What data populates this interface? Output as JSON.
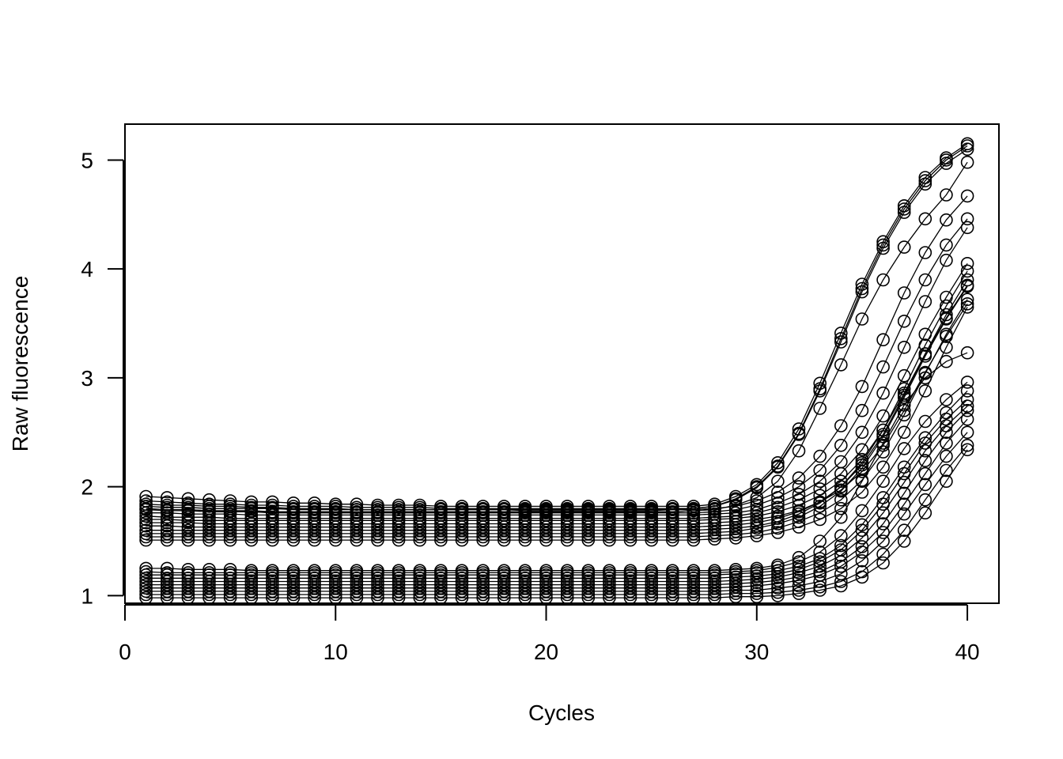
{
  "chart_data": {
    "type": "line",
    "title": "",
    "xlabel": "Cycles",
    "ylabel": "Raw fluorescence",
    "xlim": [
      0,
      41.5
    ],
    "ylim": [
      0.93,
      5.33
    ],
    "xticks": [
      0,
      10,
      20,
      30,
      40
    ],
    "yticks": [
      1,
      2,
      3,
      4,
      5
    ],
    "grid": false,
    "legend": "none",
    "marker": "open-circle",
    "line_color": "#000000",
    "x": [
      1,
      2,
      3,
      4,
      5,
      6,
      7,
      8,
      9,
      10,
      11,
      12,
      13,
      14,
      15,
      16,
      17,
      18,
      19,
      20,
      21,
      22,
      23,
      24,
      25,
      26,
      27,
      28,
      29,
      30,
      31,
      32,
      33,
      34,
      35,
      36,
      37,
      38,
      39,
      40
    ],
    "series": [
      {
        "values": [
          1.91,
          1.9,
          1.89,
          1.88,
          1.87,
          1.86,
          1.86,
          1.85,
          1.85,
          1.84,
          1.84,
          1.83,
          1.83,
          1.83,
          1.82,
          1.82,
          1.82,
          1.82,
          1.82,
          1.82,
          1.82,
          1.82,
          1.82,
          1.82,
          1.82,
          1.82,
          1.82,
          1.84,
          1.91,
          2.02,
          2.22,
          2.53,
          2.95,
          3.41,
          3.86,
          4.25,
          4.58,
          4.84,
          5.02,
          5.15
        ]
      },
      {
        "values": [
          1.87,
          1.86,
          1.85,
          1.84,
          1.84,
          1.83,
          1.83,
          1.82,
          1.82,
          1.82,
          1.81,
          1.81,
          1.81,
          1.81,
          1.8,
          1.8,
          1.8,
          1.8,
          1.8,
          1.8,
          1.8,
          1.8,
          1.8,
          1.8,
          1.8,
          1.8,
          1.8,
          1.82,
          1.89,
          2.0,
          2.19,
          2.49,
          2.9,
          3.36,
          3.82,
          4.22,
          4.55,
          4.81,
          5.0,
          5.13
        ]
      },
      {
        "values": [
          1.84,
          1.83,
          1.83,
          1.82,
          1.82,
          1.81,
          1.81,
          1.8,
          1.8,
          1.8,
          1.79,
          1.79,
          1.79,
          1.79,
          1.79,
          1.79,
          1.79,
          1.79,
          1.78,
          1.78,
          1.78,
          1.78,
          1.78,
          1.78,
          1.78,
          1.79,
          1.8,
          1.82,
          1.88,
          1.99,
          2.18,
          2.48,
          2.88,
          3.33,
          3.79,
          4.19,
          4.52,
          4.78,
          4.97,
          5.1
        ]
      },
      {
        "values": [
          1.8,
          1.79,
          1.79,
          1.78,
          1.78,
          1.78,
          1.77,
          1.77,
          1.77,
          1.77,
          1.77,
          1.77,
          1.77,
          1.77,
          1.77,
          1.77,
          1.77,
          1.77,
          1.77,
          1.77,
          1.77,
          1.77,
          1.77,
          1.77,
          1.77,
          1.77,
          1.78,
          1.79,
          1.83,
          1.9,
          2.05,
          2.33,
          2.72,
          3.12,
          3.54,
          3.9,
          4.2,
          4.46,
          4.68,
          4.98
        ]
      },
      {
        "values": [
          1.82,
          1.81,
          1.81,
          1.8,
          1.8,
          1.8,
          1.8,
          1.79,
          1.79,
          1.79,
          1.79,
          1.79,
          1.79,
          1.79,
          1.79,
          1.79,
          1.79,
          1.79,
          1.79,
          1.79,
          1.79,
          1.79,
          1.79,
          1.79,
          1.79,
          1.79,
          1.79,
          1.8,
          1.82,
          1.87,
          1.95,
          2.08,
          2.28,
          2.56,
          2.92,
          3.35,
          3.78,
          4.15,
          4.45,
          4.67
        ]
      },
      {
        "values": [
          1.79,
          1.78,
          1.78,
          1.77,
          1.77,
          1.77,
          1.76,
          1.76,
          1.76,
          1.76,
          1.76,
          1.76,
          1.76,
          1.76,
          1.76,
          1.76,
          1.76,
          1.76,
          1.76,
          1.76,
          1.76,
          1.76,
          1.76,
          1.76,
          1.76,
          1.76,
          1.76,
          1.77,
          1.79,
          1.83,
          1.9,
          2.0,
          2.15,
          2.38,
          2.7,
          3.1,
          3.52,
          3.9,
          4.22,
          4.46
        ]
      },
      {
        "values": [
          1.76,
          1.76,
          1.75,
          1.75,
          1.75,
          1.74,
          1.74,
          1.74,
          1.74,
          1.74,
          1.74,
          1.74,
          1.74,
          1.74,
          1.74,
          1.74,
          1.74,
          1.74,
          1.74,
          1.74,
          1.74,
          1.74,
          1.74,
          1.74,
          1.74,
          1.74,
          1.74,
          1.75,
          1.76,
          1.79,
          1.85,
          1.93,
          2.05,
          2.23,
          2.5,
          2.86,
          3.28,
          3.7,
          4.08,
          4.38
        ]
      },
      {
        "values": [
          1.73,
          1.72,
          1.72,
          1.72,
          1.71,
          1.71,
          1.71,
          1.71,
          1.71,
          1.71,
          1.71,
          1.71,
          1.71,
          1.71,
          1.71,
          1.71,
          1.71,
          1.71,
          1.71,
          1.71,
          1.71,
          1.71,
          1.71,
          1.71,
          1.71,
          1.71,
          1.71,
          1.72,
          1.73,
          1.76,
          1.81,
          1.88,
          1.98,
          2.12,
          2.34,
          2.65,
          3.02,
          3.4,
          3.74,
          4.05
        ]
      },
      {
        "values": [
          1.7,
          1.7,
          1.69,
          1.69,
          1.69,
          1.69,
          1.69,
          1.69,
          1.69,
          1.69,
          1.69,
          1.69,
          1.69,
          1.69,
          1.69,
          1.69,
          1.69,
          1.69,
          1.69,
          1.69,
          1.69,
          1.69,
          1.69,
          1.69,
          1.69,
          1.69,
          1.69,
          1.7,
          1.71,
          1.73,
          1.77,
          1.83,
          1.92,
          2.05,
          2.25,
          2.52,
          2.86,
          3.22,
          3.55,
          3.85
        ]
      },
      {
        "values": [
          1.67,
          1.67,
          1.67,
          1.66,
          1.66,
          1.66,
          1.66,
          1.66,
          1.66,
          1.66,
          1.66,
          1.66,
          1.66,
          1.66,
          1.66,
          1.66,
          1.66,
          1.66,
          1.66,
          1.66,
          1.66,
          1.66,
          1.66,
          1.66,
          1.66,
          1.66,
          1.66,
          1.67,
          1.68,
          1.7,
          1.73,
          1.78,
          1.86,
          1.97,
          2.14,
          2.38,
          2.7,
          3.05,
          3.38,
          3.68
        ]
      },
      {
        "values": [
          1.64,
          1.64,
          1.63,
          1.63,
          1.63,
          1.63,
          1.63,
          1.63,
          1.63,
          1.63,
          1.63,
          1.63,
          1.63,
          1.63,
          1.63,
          1.63,
          1.63,
          1.63,
          1.63,
          1.63,
          1.63,
          1.63,
          1.63,
          1.63,
          1.63,
          1.63,
          1.63,
          1.64,
          1.65,
          1.67,
          1.71,
          1.77,
          1.86,
          2.0,
          2.2,
          2.48,
          2.84,
          3.22,
          3.58,
          3.9
        ]
      },
      {
        "values": [
          1.6,
          1.6,
          1.6,
          1.6,
          1.6,
          1.6,
          1.6,
          1.6,
          1.6,
          1.6,
          1.6,
          1.6,
          1.6,
          1.6,
          1.6,
          1.6,
          1.6,
          1.6,
          1.6,
          1.6,
          1.6,
          1.6,
          1.6,
          1.6,
          1.6,
          1.6,
          1.6,
          1.61,
          1.62,
          1.64,
          1.68,
          1.75,
          1.85,
          2.0,
          2.22,
          2.52,
          2.9,
          3.3,
          3.66,
          3.98
        ]
      },
      {
        "values": [
          1.57,
          1.57,
          1.57,
          1.57,
          1.57,
          1.57,
          1.57,
          1.57,
          1.57,
          1.57,
          1.57,
          1.57,
          1.57,
          1.57,
          1.57,
          1.57,
          1.57,
          1.57,
          1.57,
          1.57,
          1.57,
          1.57,
          1.57,
          1.57,
          1.57,
          1.57,
          1.57,
          1.58,
          1.59,
          1.62,
          1.66,
          1.72,
          1.82,
          1.96,
          2.17,
          2.46,
          2.82,
          3.2,
          3.54,
          3.84
        ]
      },
      {
        "values": [
          1.54,
          1.54,
          1.54,
          1.54,
          1.54,
          1.54,
          1.54,
          1.54,
          1.54,
          1.54,
          1.54,
          1.54,
          1.54,
          1.54,
          1.54,
          1.54,
          1.54,
          1.54,
          1.54,
          1.54,
          1.54,
          1.54,
          1.54,
          1.54,
          1.54,
          1.54,
          1.54,
          1.55,
          1.56,
          1.58,
          1.62,
          1.68,
          1.76,
          1.88,
          2.06,
          2.32,
          2.66,
          3.04,
          3.4,
          3.72
        ]
      },
      {
        "values": [
          1.51,
          1.51,
          1.51,
          1.51,
          1.51,
          1.51,
          1.51,
          1.51,
          1.51,
          1.51,
          1.51,
          1.51,
          1.51,
          1.51,
          1.51,
          1.51,
          1.51,
          1.51,
          1.51,
          1.51,
          1.51,
          1.51,
          1.51,
          1.51,
          1.51,
          1.51,
          1.51,
          1.52,
          1.53,
          1.55,
          1.58,
          1.63,
          1.7,
          1.8,
          1.95,
          2.18,
          2.5,
          2.88,
          3.28,
          3.65
        ]
      },
      {
        "values": [
          1.25,
          1.25,
          1.24,
          1.24,
          1.24,
          1.23,
          1.23,
          1.23,
          1.23,
          1.23,
          1.23,
          1.23,
          1.23,
          1.23,
          1.23,
          1.23,
          1.23,
          1.23,
          1.23,
          1.23,
          1.23,
          1.23,
          1.23,
          1.23,
          1.23,
          1.23,
          1.23,
          1.23,
          1.24,
          1.25,
          1.28,
          1.35,
          1.5,
          1.72,
          2.05,
          2.4,
          2.75,
          3.0,
          3.15,
          3.23
        ]
      },
      {
        "values": [
          1.22,
          1.21,
          1.21,
          1.21,
          1.21,
          1.21,
          1.21,
          1.21,
          1.21,
          1.21,
          1.21,
          1.21,
          1.21,
          1.21,
          1.21,
          1.21,
          1.21,
          1.21,
          1.21,
          1.21,
          1.21,
          1.21,
          1.21,
          1.21,
          1.21,
          1.21,
          1.21,
          1.21,
          1.22,
          1.23,
          1.26,
          1.31,
          1.4,
          1.55,
          1.78,
          2.05,
          2.35,
          2.6,
          2.8,
          2.96
        ]
      },
      {
        "values": [
          1.19,
          1.19,
          1.19,
          1.19,
          1.19,
          1.19,
          1.19,
          1.19,
          1.19,
          1.19,
          1.19,
          1.19,
          1.19,
          1.19,
          1.19,
          1.19,
          1.19,
          1.19,
          1.19,
          1.19,
          1.19,
          1.19,
          1.19,
          1.19,
          1.19,
          1.19,
          1.19,
          1.19,
          1.2,
          1.21,
          1.23,
          1.27,
          1.34,
          1.46,
          1.65,
          1.9,
          2.18,
          2.45,
          2.68,
          2.88
        ]
      },
      {
        "values": [
          1.16,
          1.16,
          1.16,
          1.16,
          1.16,
          1.16,
          1.16,
          1.16,
          1.16,
          1.16,
          1.16,
          1.16,
          1.16,
          1.16,
          1.16,
          1.16,
          1.16,
          1.16,
          1.16,
          1.16,
          1.16,
          1.16,
          1.16,
          1.16,
          1.16,
          1.16,
          1.16,
          1.16,
          1.17,
          1.18,
          1.2,
          1.24,
          1.31,
          1.42,
          1.6,
          1.84,
          2.12,
          2.4,
          2.62,
          2.8
        ]
      },
      {
        "values": [
          1.13,
          1.13,
          1.13,
          1.13,
          1.13,
          1.13,
          1.13,
          1.13,
          1.13,
          1.13,
          1.13,
          1.13,
          1.13,
          1.13,
          1.13,
          1.13,
          1.13,
          1.13,
          1.13,
          1.13,
          1.13,
          1.13,
          1.13,
          1.13,
          1.13,
          1.13,
          1.13,
          1.13,
          1.14,
          1.15,
          1.17,
          1.21,
          1.27,
          1.37,
          1.53,
          1.76,
          2.04,
          2.33,
          2.56,
          2.74
        ]
      },
      {
        "values": [
          1.1,
          1.1,
          1.1,
          1.1,
          1.1,
          1.1,
          1.1,
          1.1,
          1.1,
          1.1,
          1.1,
          1.1,
          1.1,
          1.1,
          1.1,
          1.1,
          1.1,
          1.1,
          1.1,
          1.1,
          1.1,
          1.1,
          1.1,
          1.1,
          1.1,
          1.1,
          1.1,
          1.1,
          1.11,
          1.12,
          1.14,
          1.17,
          1.22,
          1.31,
          1.45,
          1.66,
          1.94,
          2.24,
          2.5,
          2.7
        ]
      },
      {
        "values": [
          1.07,
          1.07,
          1.07,
          1.07,
          1.07,
          1.07,
          1.07,
          1.07,
          1.07,
          1.07,
          1.07,
          1.07,
          1.07,
          1.07,
          1.07,
          1.07,
          1.07,
          1.07,
          1.07,
          1.07,
          1.07,
          1.07,
          1.07,
          1.07,
          1.07,
          1.07,
          1.07,
          1.07,
          1.08,
          1.09,
          1.11,
          1.14,
          1.19,
          1.27,
          1.4,
          1.58,
          1.84,
          2.12,
          2.4,
          2.62
        ]
      },
      {
        "values": [
          1.04,
          1.04,
          1.04,
          1.04,
          1.04,
          1.04,
          1.04,
          1.04,
          1.04,
          1.04,
          1.04,
          1.04,
          1.04,
          1.04,
          1.04,
          1.04,
          1.04,
          1.04,
          1.04,
          1.04,
          1.04,
          1.04,
          1.04,
          1.04,
          1.04,
          1.04,
          1.04,
          1.04,
          1.05,
          1.05,
          1.07,
          1.09,
          1.13,
          1.2,
          1.32,
          1.5,
          1.75,
          2.02,
          2.28,
          2.5
        ]
      },
      {
        "values": [
          1.01,
          1.01,
          1.01,
          1.01,
          1.01,
          1.01,
          1.01,
          1.01,
          1.01,
          1.01,
          1.01,
          1.01,
          1.01,
          1.01,
          1.01,
          1.01,
          1.01,
          1.01,
          1.01,
          1.01,
          1.01,
          1.01,
          1.01,
          1.01,
          1.01,
          1.01,
          1.01,
          1.01,
          1.02,
          1.02,
          1.03,
          1.05,
          1.08,
          1.13,
          1.22,
          1.38,
          1.6,
          1.88,
          2.15,
          2.38
        ]
      },
      {
        "values": [
          0.98,
          0.98,
          0.98,
          0.98,
          0.98,
          0.98,
          0.98,
          0.98,
          0.98,
          0.98,
          0.98,
          0.98,
          0.98,
          0.98,
          0.98,
          0.98,
          0.98,
          0.98,
          0.98,
          0.98,
          0.98,
          0.98,
          0.98,
          0.98,
          0.98,
          0.98,
          0.98,
          0.98,
          0.99,
          0.99,
          1.0,
          1.02,
          1.05,
          1.09,
          1.17,
          1.3,
          1.5,
          1.76,
          2.05,
          2.34
        ]
      }
    ]
  }
}
